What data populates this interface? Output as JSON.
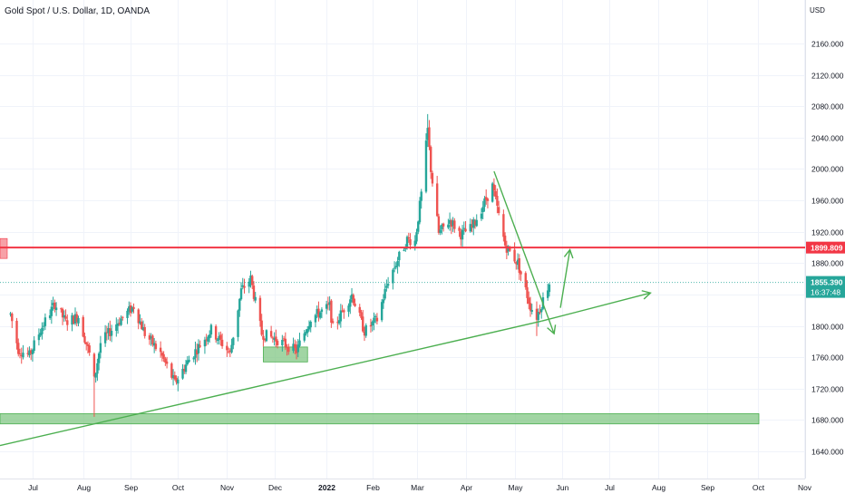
{
  "header": {
    "symbol_title": "Gold Spot / U.S. Dollar, 1D, OANDA"
  },
  "chart_data": {
    "type": "candlestick",
    "title": "Gold Spot / U.S. Dollar, 1D, OANDA",
    "currency": "USD",
    "y_ticks": [
      1640,
      1680,
      1720,
      1760,
      1800,
      1840,
      1880,
      1920,
      1960,
      2000,
      2040,
      2080,
      2120,
      2160
    ],
    "y_tick_labels": [
      "1640.000",
      "1680.000",
      "1720.000",
      "1760.000",
      "1800.000",
      "1840.000",
      "1880.000",
      "1920.000",
      "1960.000",
      "2000.000",
      "2040.000",
      "2080.000",
      "2120.000",
      "2160.000"
    ],
    "x_ticks": [
      {
        "label": "Jul",
        "date": "2021-07-01"
      },
      {
        "label": "Aug",
        "date": "2021-08-02"
      },
      {
        "label": "Sep",
        "date": "2021-09-01"
      },
      {
        "label": "Oct",
        "date": "2021-10-01"
      },
      {
        "label": "Nov",
        "date": "2021-11-01"
      },
      {
        "label": "Dec",
        "date": "2021-12-01"
      },
      {
        "label": "2022",
        "date": "2022-01-03",
        "bold": true
      },
      {
        "label": "Feb",
        "date": "2022-02-01"
      },
      {
        "label": "Mar",
        "date": "2022-03-01"
      },
      {
        "label": "Apr",
        "date": "2022-04-01"
      },
      {
        "label": "May",
        "date": "2022-05-02"
      },
      {
        "label": "Jun",
        "date": "2022-06-01"
      },
      {
        "label": "Jul",
        "date": "2022-07-01"
      },
      {
        "label": "Aug",
        "date": "2022-08-01"
      },
      {
        "label": "Sep",
        "date": "2022-09-01"
      },
      {
        "label": "Oct",
        "date": "2022-10-03"
      },
      {
        "label": "Nov",
        "date": "2022-11-01"
      }
    ],
    "price_path": [
      [
        "2021-06-17",
        1815
      ],
      [
        "2021-06-22",
        1770
      ],
      [
        "2021-06-29",
        1762
      ],
      [
        "2021-07-06",
        1795
      ],
      [
        "2021-07-15",
        1828
      ],
      [
        "2021-07-22",
        1805
      ],
      [
        "2021-07-30",
        1812
      ],
      [
        "2021-08-06",
        1764
      ],
      [
        "2021-08-09",
        1730
      ],
      [
        "2021-08-13",
        1778
      ],
      [
        "2021-08-24",
        1805
      ],
      [
        "2021-09-03",
        1825
      ],
      [
        "2021-09-10",
        1790
      ],
      [
        "2021-09-20",
        1765
      ],
      [
        "2021-09-29",
        1727
      ],
      [
        "2021-10-08",
        1757
      ],
      [
        "2021-10-22",
        1795
      ],
      [
        "2021-11-03",
        1765
      ],
      [
        "2021-11-10",
        1845
      ],
      [
        "2021-11-16",
        1860
      ],
      [
        "2021-11-23",
        1790
      ],
      [
        "2021-12-03",
        1782
      ],
      [
        "2021-12-15",
        1768
      ],
      [
        "2021-12-24",
        1810
      ],
      [
        "2022-01-05",
        1825
      ],
      [
        "2022-01-07",
        1797
      ],
      [
        "2022-01-19",
        1840
      ],
      [
        "2022-01-27",
        1793
      ],
      [
        "2022-02-04",
        1808
      ],
      [
        "2022-02-11",
        1858
      ],
      [
        "2022-02-23",
        1910
      ],
      [
        "2022-02-28",
        1908
      ],
      [
        "2022-03-04",
        1968
      ],
      [
        "2022-03-08",
        2050
      ],
      [
        "2022-03-10",
        2000
      ],
      [
        "2022-03-15",
        1918
      ],
      [
        "2022-03-22",
        1935
      ],
      [
        "2022-03-29",
        1917
      ],
      [
        "2022-04-05",
        1925
      ],
      [
        "2022-04-18",
        1978
      ],
      [
        "2022-04-26",
        1903
      ],
      [
        "2022-05-04",
        1880
      ],
      [
        "2022-05-12",
        1825
      ],
      [
        "2022-05-16",
        1812
      ],
      [
        "2022-05-24",
        1855
      ]
    ],
    "annotations": {
      "resistance_level": 1899.809,
      "support_zone": {
        "from": 1675,
        "to": 1688
      },
      "consolidation_box": {
        "start": "2021-11-24",
        "end": "2021-12-22",
        "from": 1754,
        "to": 1773
      },
      "rising_trendline": [
        [
          "2021-06-16",
          1650
        ],
        [
          "2022-05-19",
          1806
        ]
      ],
      "rising_trendline_arrow_end": [
        "2022-07-27",
        1842
      ],
      "falling_trendline": [
        [
          "2022-04-19",
          1997
        ],
        [
          "2022-05-27",
          1790
        ]
      ],
      "breakout_arrow": [
        [
          "2022-05-31",
          1823
        ],
        [
          "2022-06-06",
          1897
        ]
      ]
    },
    "price_labels": [
      {
        "value": 1899.809,
        "text": "1899.809",
        "color": "#f23645"
      },
      {
        "value": 1855.39,
        "text": "1855.390",
        "color": "#26a69a"
      }
    ],
    "countdown": "16:37:48",
    "colors": {
      "up": "#26a69a",
      "down": "#ef5350",
      "resistance": "#f23645",
      "annotation_green": "#4caf50",
      "zone_fill": "#81c784",
      "grid": "#f0f3fa"
    }
  }
}
